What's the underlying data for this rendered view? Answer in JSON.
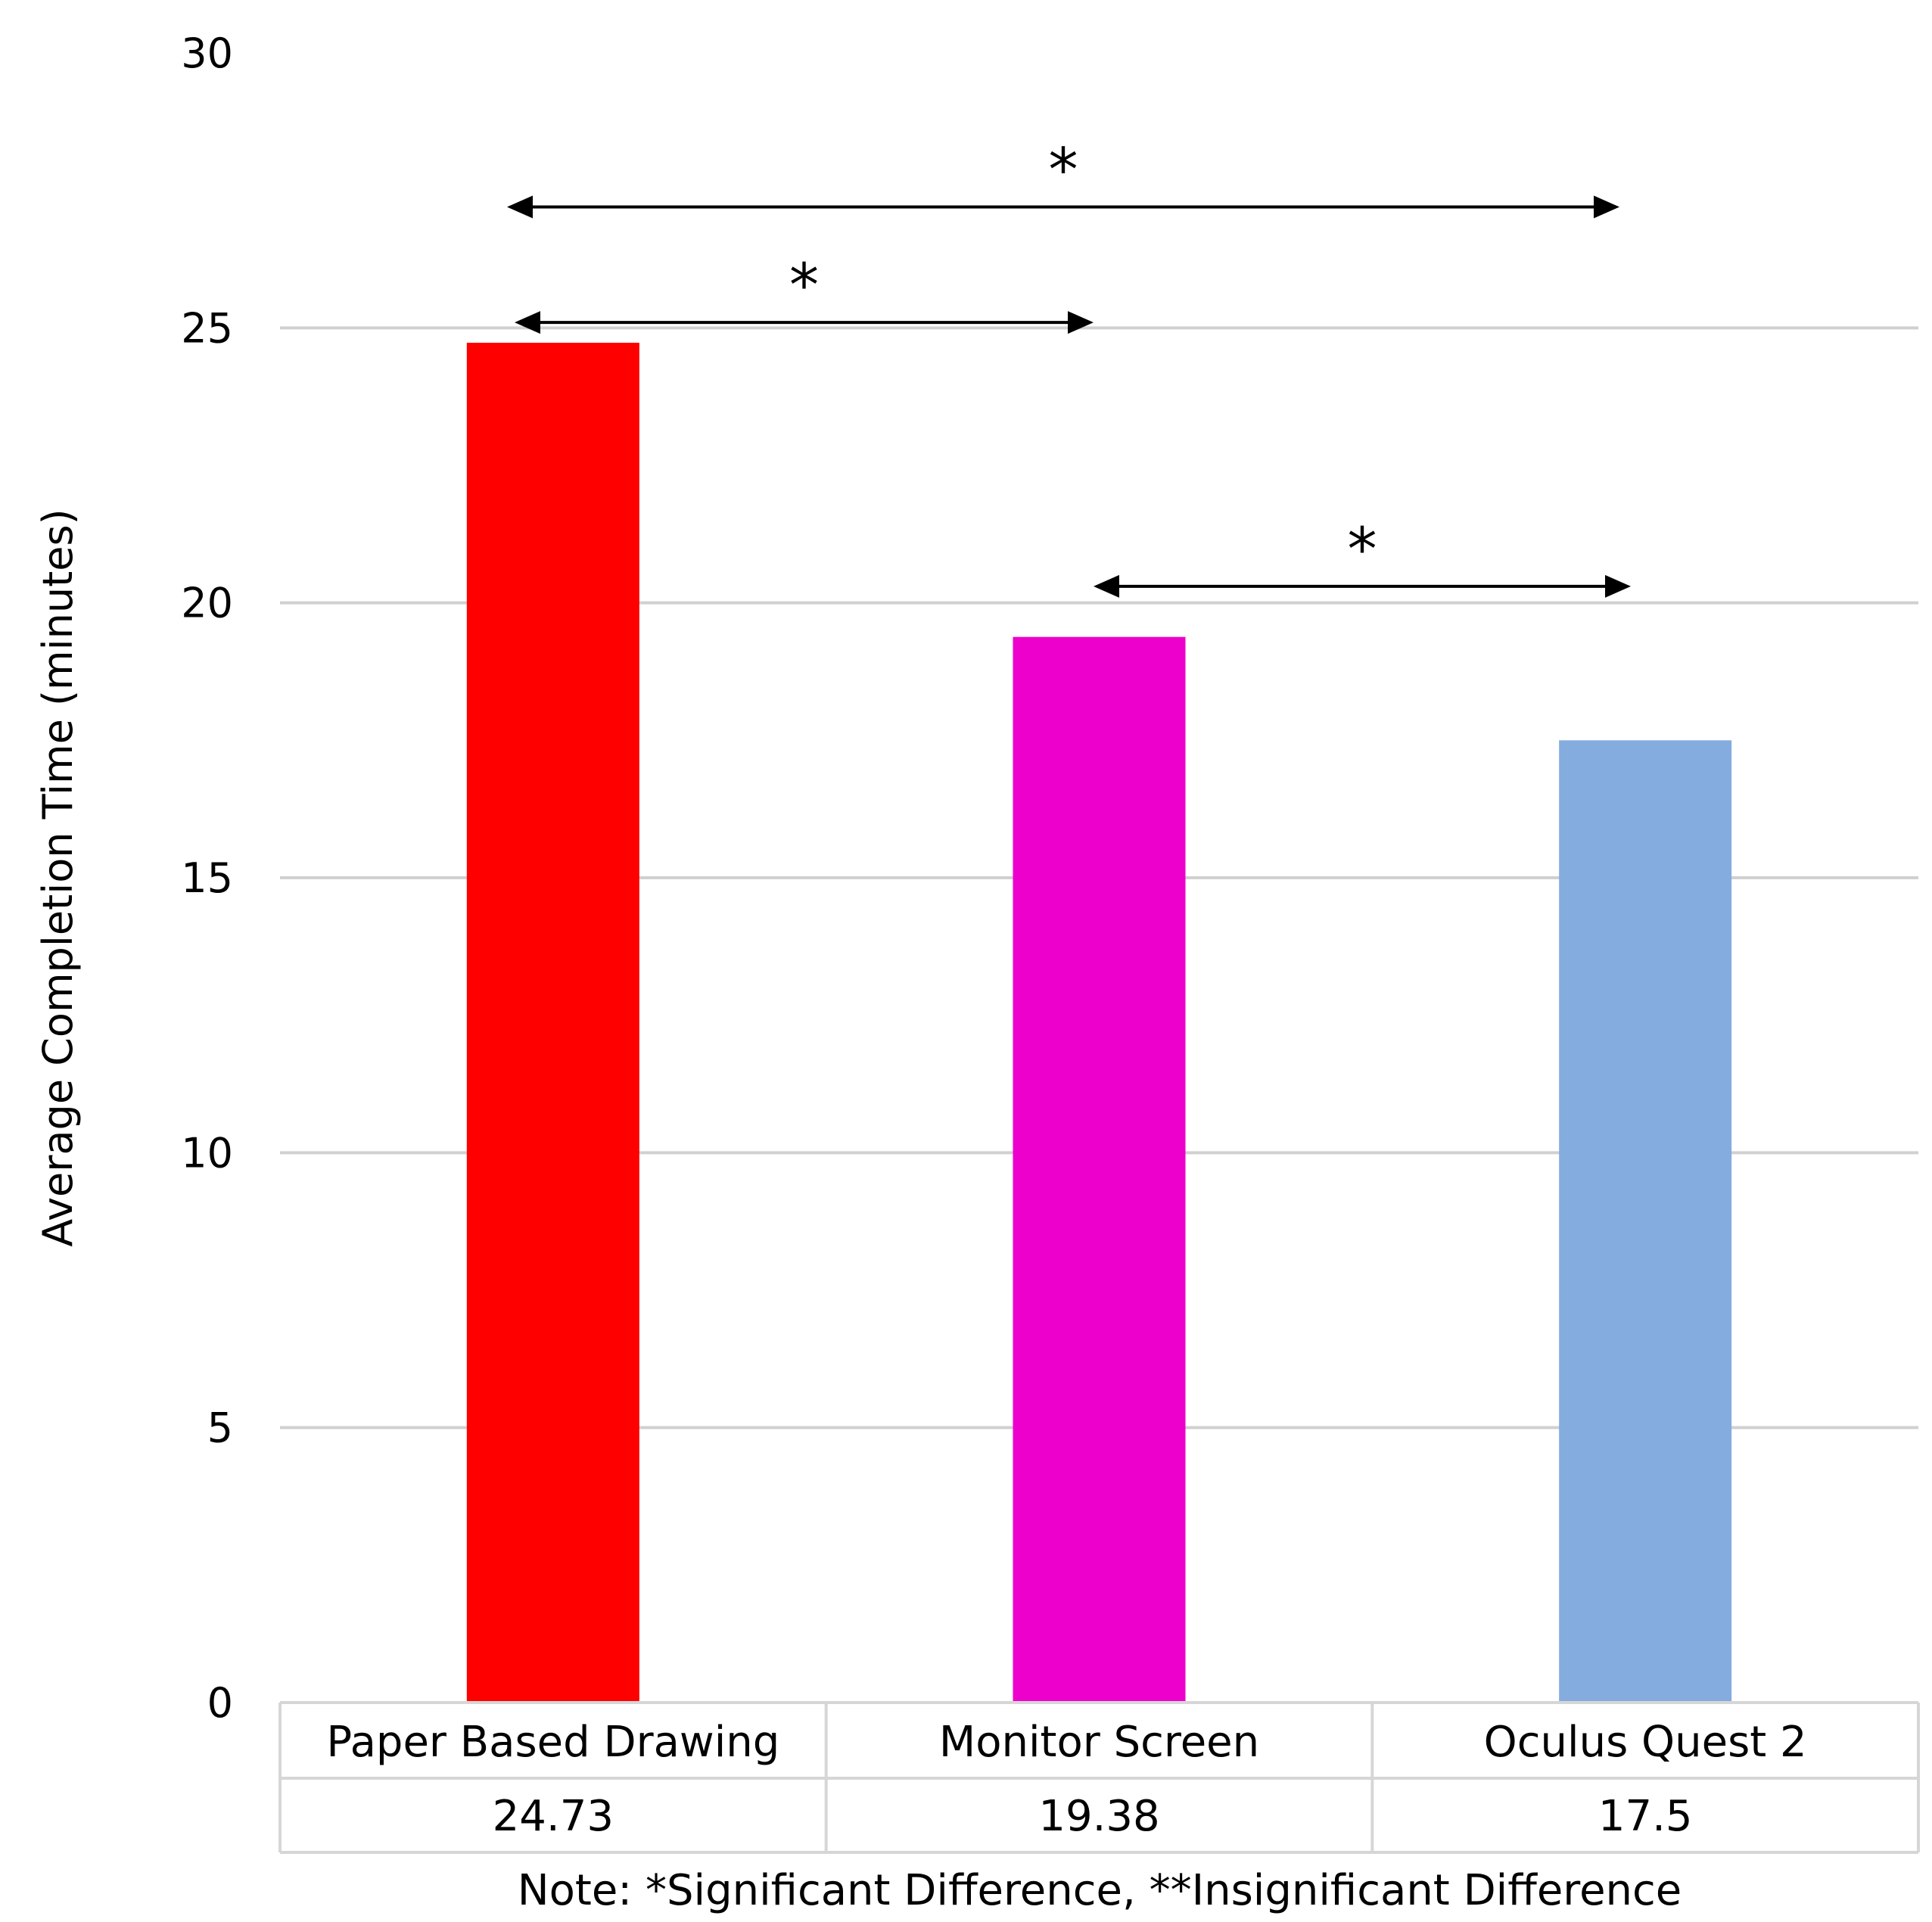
{
  "chart_data": {
    "type": "bar",
    "title": "",
    "xlabel": "",
    "ylabel": "Average Completion Time (minutes)",
    "ylim": [
      0,
      30
    ],
    "yticks": [
      0,
      5,
      10,
      15,
      20,
      25,
      30
    ],
    "grid": true,
    "categories": [
      "Paper Based Drawing",
      "Monitor Screen",
      "Oculus Quest 2"
    ],
    "values": [
      24.73,
      19.38,
      17.5
    ],
    "value_labels": [
      "24.73",
      "19.38",
      "17.5"
    ],
    "colors": [
      "#ff0000",
      "#ee00cc",
      "#84acdf"
    ],
    "data_table": true,
    "annotations": [
      {
        "label": "*",
        "from": "Paper Based Drawing",
        "to": "Oculus Quest 2",
        "y": 27.2
      },
      {
        "label": "*",
        "from": "Paper Based Drawing",
        "to": "Monitor Screen",
        "y": 25.1
      },
      {
        "label": "*",
        "from": "Monitor Screen",
        "to": "Oculus Quest 2",
        "y": 20.3
      }
    ],
    "note": "Note: *Significant Difference,  **Insignificant Difference"
  }
}
